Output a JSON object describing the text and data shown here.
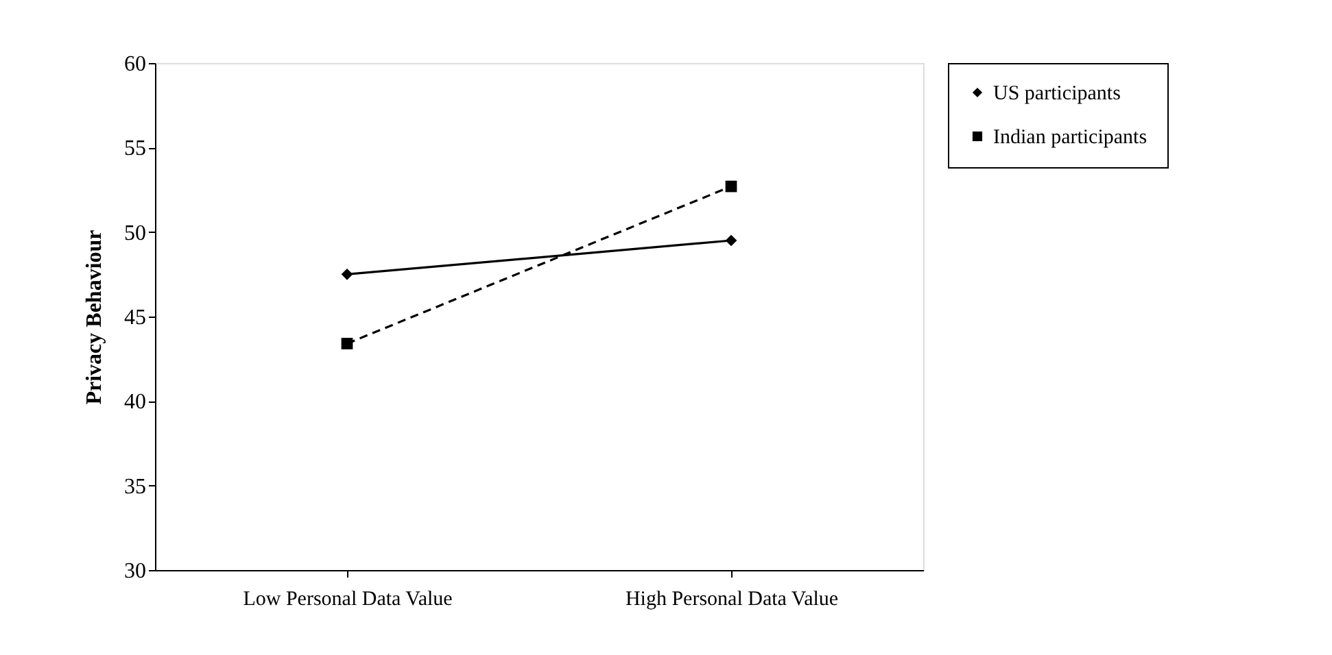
{
  "chart_data": {
    "type": "line",
    "ylabel": "Privacy Behaviour",
    "categories": [
      "Low Personal Data Value",
      "High Personal Data Value"
    ],
    "series": [
      {
        "name": "US participants",
        "color": "#000000",
        "values": [
          47.5,
          49.5
        ],
        "marker": "diamond",
        "line_style": "solid"
      },
      {
        "name": "Indian participants",
        "color": "#000000",
        "values": [
          43.4,
          52.7
        ],
        "marker": "square",
        "line_style": "dashed"
      }
    ],
    "ylim": [
      30,
      60
    ],
    "yticks": [
      30,
      35,
      40,
      45,
      50,
      55,
      60
    ],
    "grid": false,
    "legend": "right"
  }
}
